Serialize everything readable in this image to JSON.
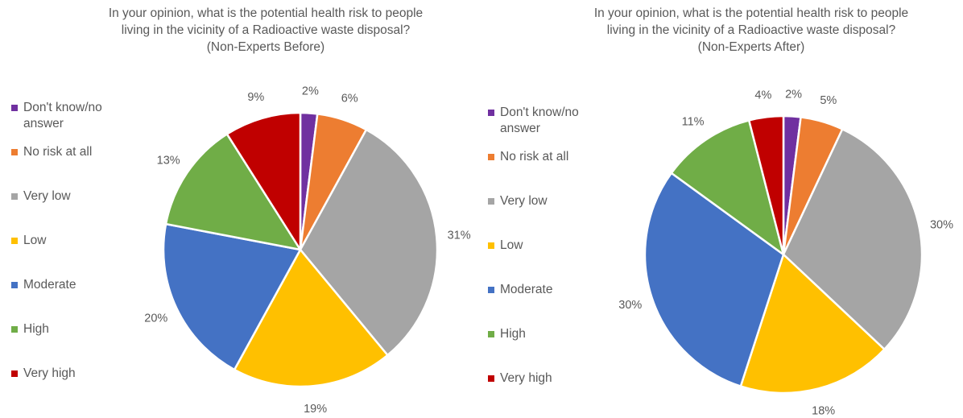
{
  "chart_data": [
    {
      "type": "pie",
      "title_lines": [
        "In your opinion, what is the potential health risk to people",
        "living in the vicinity of a Radioactive waste disposal?",
        "(Non-Experts Before)"
      ],
      "legend_placement": "left",
      "categories": [
        "Don't know/no answer",
        "No risk at all",
        "Very low",
        "Low",
        "Moderate",
        "High",
        "Very high"
      ],
      "legend_lines": [
        [
          "Don't know/no",
          "answer"
        ],
        [
          "No risk at all"
        ],
        [
          "Very low"
        ],
        [
          "Low"
        ],
        [
          "Moderate"
        ],
        [
          "High"
        ],
        [
          "Very high"
        ]
      ],
      "values": [
        2,
        6,
        31,
        19,
        20,
        13,
        9
      ],
      "labels": [
        "2%",
        "6%",
        "31%",
        "19%",
        "20%",
        "13%",
        "9%"
      ],
      "colors": [
        "#7030a0",
        "#ed7d31",
        "#a5a5a5",
        "#ffc000",
        "#4472c4",
        "#70ad47",
        "#c00000"
      ]
    },
    {
      "type": "pie",
      "title_lines": [
        "In your opinion, what is the potential health risk to people",
        "living in the vicinity of a Radioactive waste disposal?",
        "(Non-Experts After)"
      ],
      "legend_placement": "left",
      "categories": [
        "Don't know/no answer",
        "No risk at all",
        "Very low",
        "Low",
        "Moderate",
        "High",
        "Very high"
      ],
      "legend_lines": [
        [
          "Don't know/no",
          "answer"
        ],
        [
          "No risk at all"
        ],
        [
          "Very low"
        ],
        [
          "Low"
        ],
        [
          "Moderate"
        ],
        [
          "High"
        ],
        [
          "Very high"
        ]
      ],
      "values": [
        2,
        5,
        30,
        18,
        30,
        11,
        4
      ],
      "labels": [
        "2%",
        "5%",
        "30%",
        "18%",
        "30%",
        "11%",
        "4%"
      ],
      "colors": [
        "#7030a0",
        "#ed7d31",
        "#a5a5a5",
        "#ffc000",
        "#4472c4",
        "#70ad47",
        "#c00000"
      ]
    }
  ]
}
